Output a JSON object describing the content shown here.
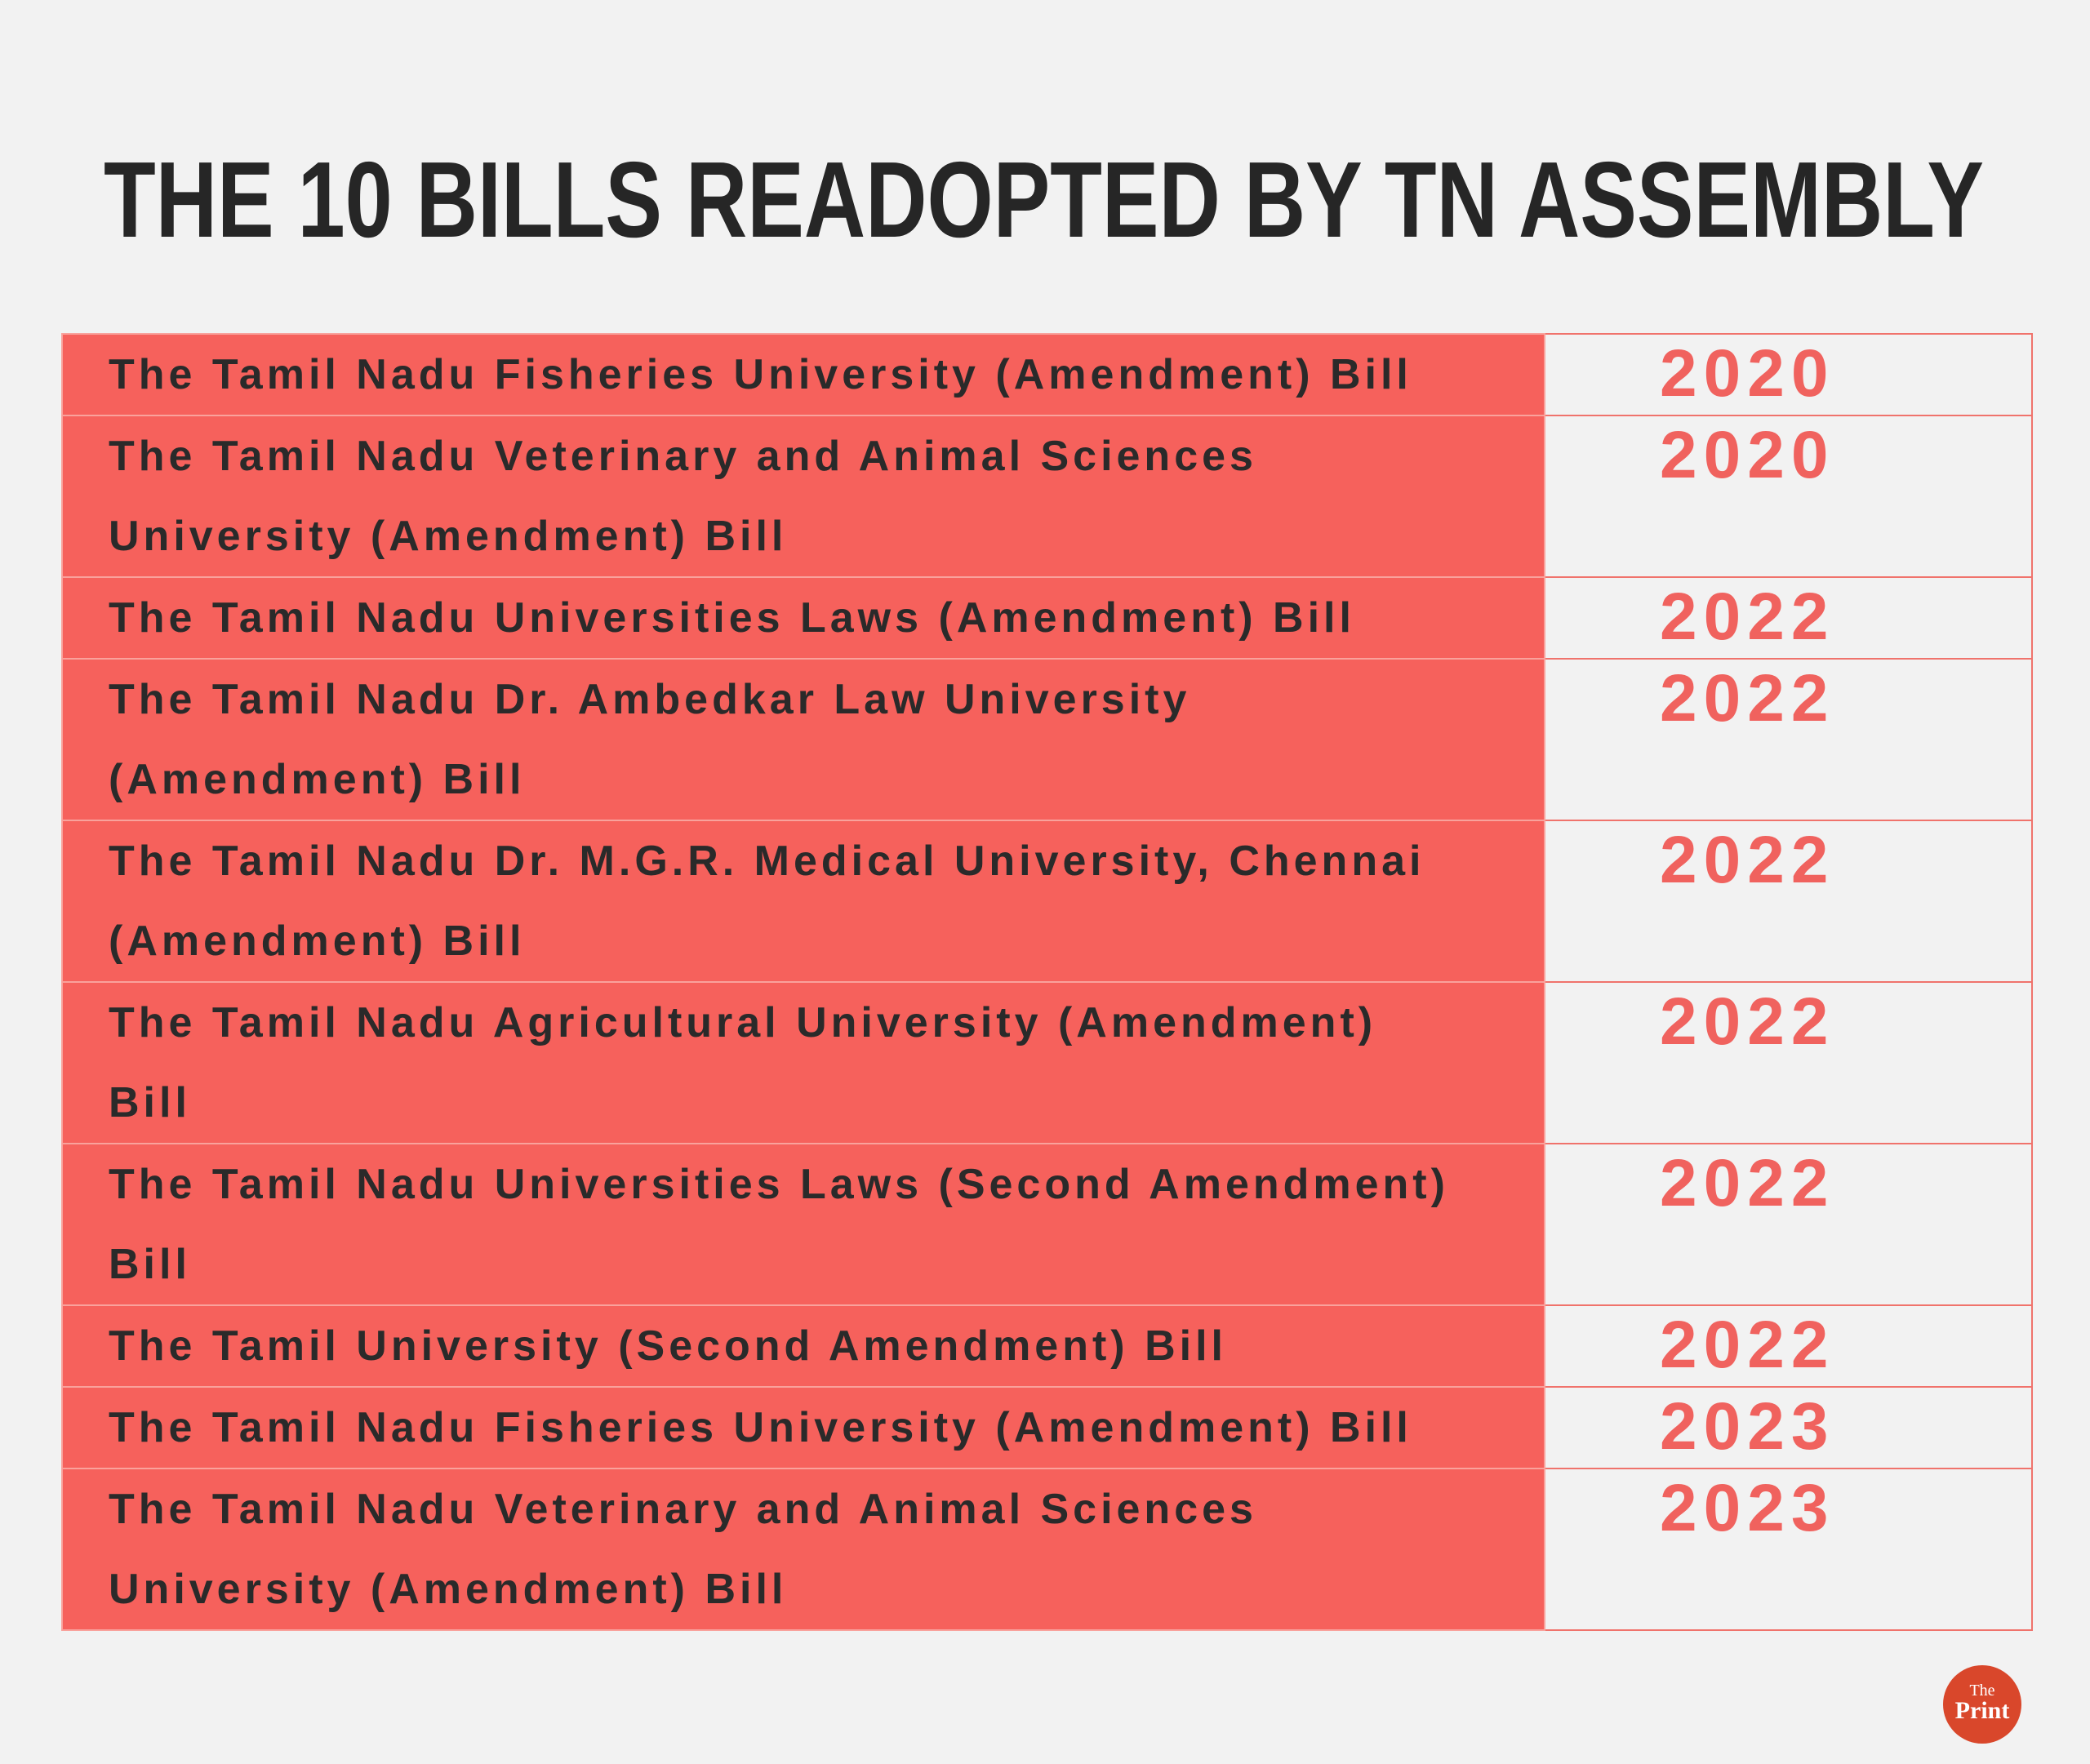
{
  "header": {
    "title": "THE 10 BILLS READOPTED BY TN ASSEMBLY"
  },
  "table": {
    "rows": [
      {
        "bill": "The Tamil Nadu Fisheries University (Amendment) Bill",
        "year": "2020"
      },
      {
        "bill": "The Tamil Nadu Veterinary and Animal Sciences University (Amendment) Bill",
        "year": "2020"
      },
      {
        "bill": "The Tamil Nadu Universities Laws (Amendment) Bill",
        "year": "2022"
      },
      {
        "bill": "The Tamil Nadu Dr. Ambedkar Law University (Amendment) Bill",
        "year": "2022"
      },
      {
        "bill": "The Tamil Nadu Dr. M.G.R. Medical University, Chennai (Amendment) Bill",
        "year": "2022"
      },
      {
        "bill": "The Tamil Nadu Agricultural University (Amendment) Bill",
        "year": "2022"
      },
      {
        "bill": "The Tamil Nadu Universities Laws (Second Amendment) Bill",
        "year": "2022"
      },
      {
        "bill": "The Tamil University (Second Amendment) Bill",
        "year": "2022"
      },
      {
        "bill": "The Tamil Nadu Fisheries University (Amendment) Bill",
        "year": "2023"
      },
      {
        "bill": "The Tamil Nadu Veterinary and Animal Sciences University (Amendment) Bill",
        "year": "2023"
      }
    ]
  },
  "logo": {
    "top": "The",
    "bottom": "Print"
  }
}
